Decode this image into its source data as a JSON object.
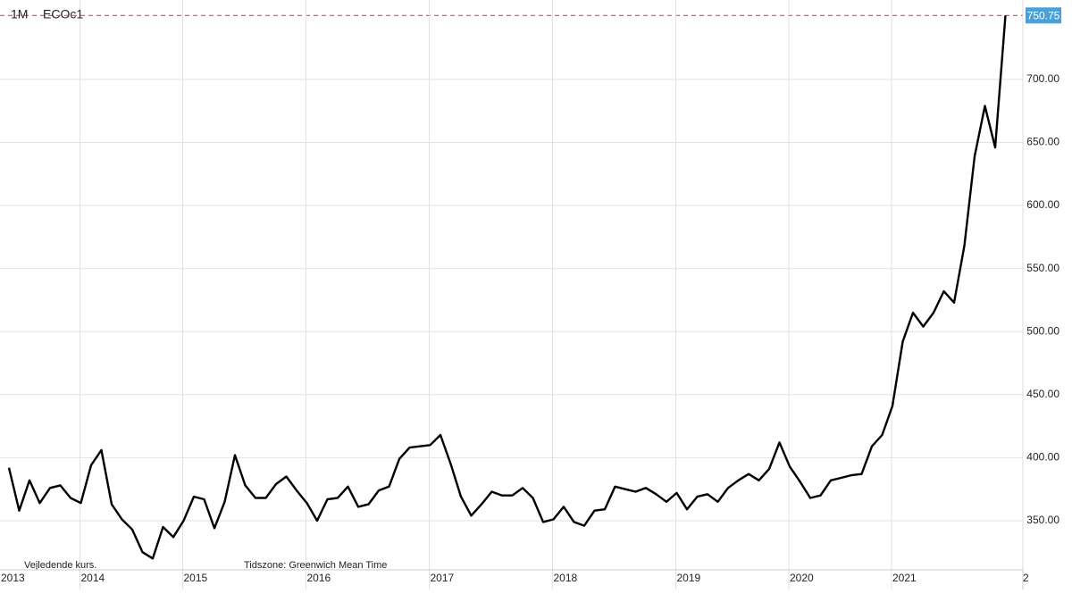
{
  "chart_data": {
    "type": "line",
    "interval": "1M",
    "symbol": "ECOc1",
    "footnote": "Vejledende kurs.",
    "timezone": "Tidszone: Greenwich Mean Time",
    "categories": [
      "2013",
      null,
      null,
      null,
      null,
      null,
      null,
      "2014",
      null,
      null,
      null,
      null,
      null,
      null,
      null,
      null,
      null,
      "2015",
      null,
      null,
      null,
      null,
      null,
      null,
      null,
      null,
      null,
      null,
      null,
      "2016",
      null,
      null,
      null,
      null,
      null,
      null,
      null,
      null,
      null,
      null,
      null,
      "2017",
      null,
      null,
      null,
      null,
      null,
      null,
      null,
      null,
      null,
      null,
      null,
      "2018",
      null,
      null,
      null,
      null,
      null,
      null,
      null,
      null,
      null,
      null,
      null,
      "2019",
      null,
      null,
      null,
      null,
      null,
      null,
      null,
      null,
      null,
      null,
      "2020",
      null,
      null,
      null,
      null,
      null,
      null,
      null,
      null,
      null,
      "2021",
      null,
      null,
      null,
      null,
      null,
      null,
      null,
      null,
      null,
      null,
      null
    ],
    "cut_xtick": "2",
    "color": "#000000",
    "values": [
      392,
      358,
      382,
      364,
      376,
      378,
      368,
      364,
      394,
      406,
      363,
      351,
      343,
      325,
      320,
      345,
      337,
      350,
      369,
      367,
      344,
      365,
      402,
      378,
      368,
      368,
      379,
      385,
      374,
      364,
      350,
      367,
      368,
      377,
      361,
      363,
      374,
      377,
      399,
      408,
      409,
      410,
      418,
      395,
      369,
      354,
      363,
      373,
      370,
      370,
      376,
      368,
      349,
      351,
      361,
      349,
      346,
      358,
      359,
      377,
      375,
      373,
      376,
      371,
      365,
      372,
      359,
      369,
      371,
      365,
      376,
      382,
      387,
      382,
      391,
      412,
      393,
      381,
      368,
      370,
      382,
      384,
      386,
      387,
      409,
      418,
      441,
      492,
      515,
      504,
      515,
      532,
      523,
      568,
      639,
      679,
      646,
      750.75
    ],
    "ylim": [
      311,
      763
    ],
    "yticks": [
      {
        "value": 350,
        "label": "350.00"
      },
      {
        "value": 400,
        "label": "400.00"
      },
      {
        "value": 450,
        "label": "450.00"
      },
      {
        "value": 500,
        "label": "500.00"
      },
      {
        "value": 550,
        "label": "550.00"
      },
      {
        "value": 600,
        "label": "600.00"
      },
      {
        "value": 650,
        "label": "650.00"
      },
      {
        "value": 700,
        "label": "700.00"
      }
    ],
    "grid": true
  }
}
